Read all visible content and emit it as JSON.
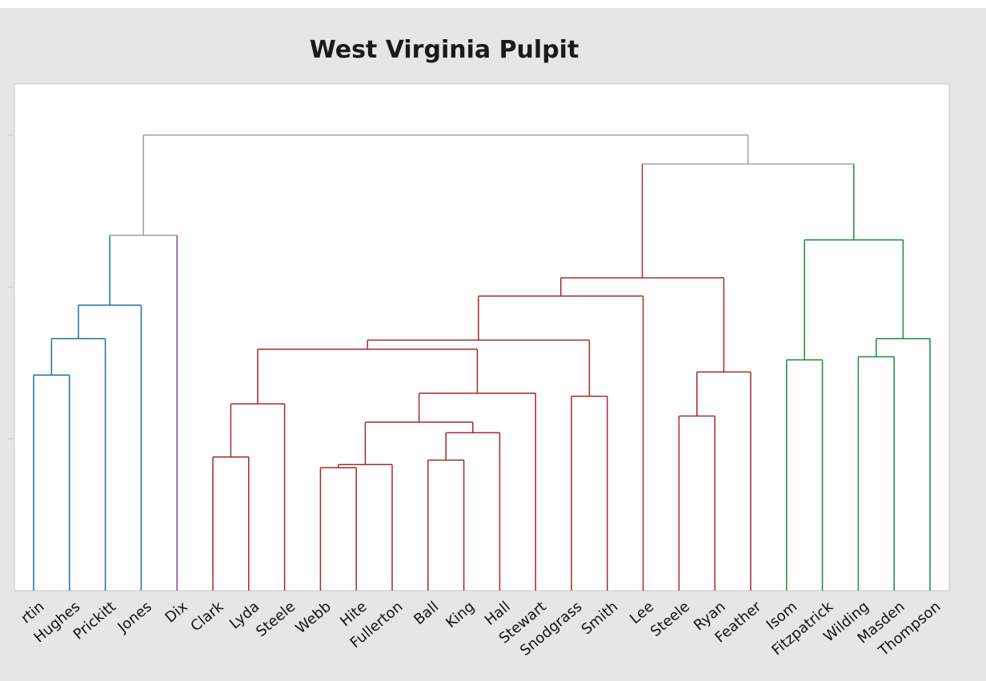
{
  "chart_data": {
    "type": "dendrogram",
    "title": "West Virginia Pulpit",
    "xlabel": "",
    "ylabel": "",
    "ylim": [
      0,
      3
    ],
    "y_tick_positions": [
      1,
      2,
      3
    ],
    "y_tick_labels_visible": false,
    "grid": false,
    "leaves": [
      "rtin",
      "Hughes",
      "Prickitt",
      "Jones",
      "Dix",
      "Clark",
      "Lyda",
      "Steele",
      "Webb",
      "Hite",
      "Fullerton",
      "Ball",
      "King",
      "Hall",
      "Stewart",
      "Snodgrass",
      "Smith",
      "Lee",
      "Steele",
      "Ryan",
      "Feather",
      "Isom",
      "Fitzpatrick",
      "Wilding",
      "Masden",
      "Thompson"
    ],
    "merges": [
      {
        "id": "c1",
        "left": "L0",
        "right": "L1",
        "height": 1.42,
        "cluster": "blue"
      },
      {
        "id": "c2",
        "left": "c1",
        "right": "L2",
        "height": 1.66,
        "cluster": "blue"
      },
      {
        "id": "c3",
        "left": "c2",
        "right": "L3",
        "height": 1.88,
        "cluster": "blue"
      },
      {
        "id": "c4",
        "left": "c3",
        "right": "L4",
        "height": 2.34,
        "cluster": "gray"
      },
      {
        "id": "c5",
        "left": "L5",
        "right": "L6",
        "height": 0.88,
        "cluster": "red"
      },
      {
        "id": "c6",
        "left": "c5",
        "right": "L7",
        "height": 1.23,
        "cluster": "red"
      },
      {
        "id": "c7",
        "left": "L8",
        "right": "L9",
        "height": 0.81,
        "cluster": "red"
      },
      {
        "id": "c8",
        "left": "c7",
        "right": "L10",
        "height": 0.83,
        "cluster": "red"
      },
      {
        "id": "c9",
        "left": "L11",
        "right": "L12",
        "height": 0.86,
        "cluster": "red"
      },
      {
        "id": "c10",
        "left": "c9",
        "right": "L13",
        "height": 1.04,
        "cluster": "red"
      },
      {
        "id": "c11",
        "left": "c8",
        "right": "c10",
        "height": 1.11,
        "cluster": "red"
      },
      {
        "id": "c12",
        "left": "c11",
        "right": "L14",
        "height": 1.3,
        "cluster": "red"
      },
      {
        "id": "c13",
        "left": "c6",
        "right": "c12",
        "height": 1.59,
        "cluster": "red"
      },
      {
        "id": "c14",
        "left": "L15",
        "right": "L16",
        "height": 1.28,
        "cluster": "red"
      },
      {
        "id": "c15",
        "left": "c13",
        "right": "c14",
        "height": 1.65,
        "cluster": "red"
      },
      {
        "id": "c16",
        "left": "c15",
        "right": "L17",
        "height": 1.94,
        "cluster": "red"
      },
      {
        "id": "c17",
        "left": "L18",
        "right": "L19",
        "height": 1.15,
        "cluster": "red"
      },
      {
        "id": "c18",
        "left": "c17",
        "right": "L20",
        "height": 1.44,
        "cluster": "red"
      },
      {
        "id": "c19",
        "left": "c16",
        "right": "c18",
        "height": 2.06,
        "cluster": "red"
      },
      {
        "id": "c20",
        "left": "L21",
        "right": "L22",
        "height": 1.52,
        "cluster": "green"
      },
      {
        "id": "c21",
        "left": "L23",
        "right": "L24",
        "height": 1.54,
        "cluster": "green"
      },
      {
        "id": "c22",
        "left": "c21",
        "right": "L25",
        "height": 1.66,
        "cluster": "green"
      },
      {
        "id": "c23",
        "left": "c20",
        "right": "c22",
        "height": 2.31,
        "cluster": "green"
      },
      {
        "id": "c24",
        "left": "c19",
        "right": "c23",
        "height": 2.81,
        "cluster": "gray"
      },
      {
        "id": "c25",
        "left": "c4",
        "right": "c24",
        "height": 3.0,
        "cluster": "gray"
      }
    ],
    "leaf_clusters": [
      "blue",
      "blue",
      "blue",
      "blue",
      "purple",
      "red",
      "red",
      "red",
      "red",
      "red",
      "red",
      "red",
      "red",
      "red",
      "red",
      "red",
      "red",
      "red",
      "red",
      "red",
      "red",
      "green",
      "green",
      "green",
      "green",
      "green"
    ],
    "colors": {
      "blue": "#1f6fa8",
      "purple": "#8b3fb3",
      "red": "#a52a2a",
      "green": "#1f8a3a",
      "gray": "#a0a0a0",
      "background": "#e6e6e6",
      "plot_background": "#ffffff",
      "frame": "#c8c8c8"
    }
  }
}
